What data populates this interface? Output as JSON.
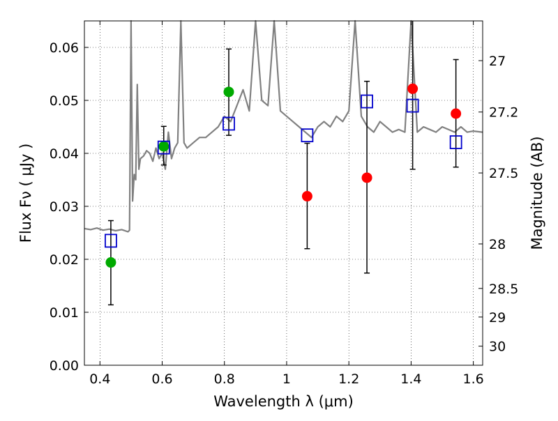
{
  "chart_data": {
    "type": "scatter",
    "xlabel": "Wavelength  λ (μm)",
    "ylabel": "Flux  Fν  ( μJy )",
    "ylabel_right": "Magnitude (AB)",
    "xlim": [
      0.35,
      1.63
    ],
    "ylim": [
      0.0,
      0.065
    ],
    "grid": true,
    "x_ticks": [
      0.4,
      0.6,
      0.8,
      1.0,
      1.2,
      1.4,
      1.6
    ],
    "x_tick_labels": [
      "0.4",
      "0.6",
      "0.8",
      "1",
      "1.2",
      "1.4",
      "1.6"
    ],
    "y_ticks": [
      0.0,
      0.01,
      0.02,
      0.03,
      0.04,
      0.05,
      0.06
    ],
    "y_tick_labels": [
      "0.00",
      "0.01",
      "0.02",
      "0.03",
      "0.04",
      "0.05",
      "0.06"
    ],
    "right_ticks": [
      {
        "label": "27",
        "flux": 0.0575
      },
      {
        "label": "27.2",
        "flux": 0.0478
      },
      {
        "label": "27.5",
        "flux": 0.0363
      },
      {
        "label": "28",
        "flux": 0.0229
      },
      {
        "label": "28.5",
        "flux": 0.0145
      },
      {
        "label": "29",
        "flux": 0.0091
      },
      {
        "label": "30",
        "flux": 0.0036
      }
    ],
    "spectrum": {
      "color": "#808080",
      "x": [
        0.35,
        0.37,
        0.39,
        0.41,
        0.43,
        0.45,
        0.47,
        0.49,
        0.495,
        0.5,
        0.505,
        0.51,
        0.515,
        0.52,
        0.525,
        0.53,
        0.54,
        0.55,
        0.56,
        0.57,
        0.58,
        0.59,
        0.6,
        0.61,
        0.62,
        0.63,
        0.64,
        0.65,
        0.66,
        0.67,
        0.68,
        0.7,
        0.72,
        0.74,
        0.76,
        0.78,
        0.8,
        0.82,
        0.84,
        0.86,
        0.88,
        0.9,
        0.92,
        0.94,
        0.96,
        0.98,
        1.0,
        1.02,
        1.04,
        1.06,
        1.08,
        1.1,
        1.12,
        1.14,
        1.16,
        1.18,
        1.2,
        1.22,
        1.24,
        1.26,
        1.28,
        1.3,
        1.32,
        1.34,
        1.36,
        1.38,
        1.4,
        1.42,
        1.44,
        1.46,
        1.48,
        1.5,
        1.52,
        1.54,
        1.56,
        1.58,
        1.6,
        1.63
      ],
      "y": [
        0.0258,
        0.0256,
        0.0259,
        0.0255,
        0.0257,
        0.0254,
        0.0256,
        0.0252,
        0.0255,
        0.065,
        0.031,
        0.036,
        0.035,
        0.053,
        0.037,
        0.039,
        0.0395,
        0.0405,
        0.04,
        0.0385,
        0.041,
        0.039,
        0.04,
        0.037,
        0.044,
        0.039,
        0.041,
        0.042,
        0.065,
        0.042,
        0.041,
        0.042,
        0.043,
        0.043,
        0.044,
        0.045,
        0.047,
        0.046,
        0.049,
        0.052,
        0.048,
        0.065,
        0.05,
        0.049,
        0.065,
        0.048,
        0.047,
        0.046,
        0.045,
        0.044,
        0.043,
        0.045,
        0.046,
        0.045,
        0.047,
        0.046,
        0.048,
        0.065,
        0.047,
        0.045,
        0.044,
        0.046,
        0.045,
        0.044,
        0.0445,
        0.044,
        0.065,
        0.044,
        0.045,
        0.0445,
        0.044,
        0.045,
        0.0445,
        0.044,
        0.045,
        0.044,
        0.0442,
        0.044
      ]
    },
    "series": [
      {
        "marker": "filled-circle",
        "color": "#00aa00",
        "points": [
          {
            "x": 0.435,
            "y": 0.0194
          },
          {
            "x": 0.605,
            "y": 0.0413
          },
          {
            "x": 0.814,
            "y": 0.0516
          }
        ]
      },
      {
        "marker": "filled-circle",
        "color": "#ff0000",
        "points": [
          {
            "x": 1.066,
            "y": 0.0319
          },
          {
            "x": 1.258,
            "y": 0.0354
          },
          {
            "x": 1.405,
            "y": 0.0522
          },
          {
            "x": 1.544,
            "y": 0.0475
          }
        ]
      },
      {
        "marker": "open-square",
        "color": "#0000cc",
        "points": [
          {
            "x": 0.435,
            "y": 0.0235
          },
          {
            "x": 0.605,
            "y": 0.0411
          },
          {
            "x": 0.814,
            "y": 0.0456
          },
          {
            "x": 1.066,
            "y": 0.0434
          },
          {
            "x": 1.258,
            "y": 0.0498
          },
          {
            "x": 1.405,
            "y": 0.049
          },
          {
            "x": 1.544,
            "y": 0.0421
          }
        ]
      }
    ],
    "error_bars": [
      {
        "x": 0.435,
        "y": 0.0194,
        "lo": 0.0114,
        "hi": 0.0273
      },
      {
        "x": 0.605,
        "y": 0.0413,
        "lo": 0.0378,
        "hi": 0.0451
      },
      {
        "x": 0.814,
        "y": 0.0516,
        "lo": 0.0434,
        "hi": 0.0597
      },
      {
        "x": 1.066,
        "y": 0.0319,
        "lo": 0.022,
        "hi": 0.0419
      },
      {
        "x": 1.258,
        "y": 0.0354,
        "lo": 0.0174,
        "hi": 0.0536
      },
      {
        "x": 1.405,
        "y": 0.0522,
        "lo": 0.037,
        "hi": 0.065
      },
      {
        "x": 1.544,
        "y": 0.0475,
        "lo": 0.0374,
        "hi": 0.0577
      }
    ]
  }
}
